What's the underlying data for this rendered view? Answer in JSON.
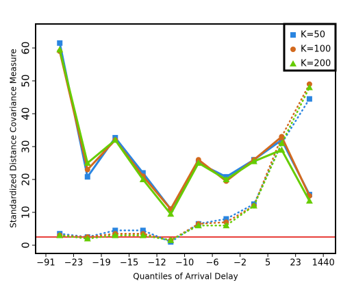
{
  "chart_data": {
    "type": "line",
    "xlabel": "Quantiles of Arrival Delay",
    "ylabel": "Standardized Distance Covariance Measure",
    "x": [
      0.5,
      1.5,
      2.5,
      3.5,
      4.5,
      5.5,
      6.5,
      7.5,
      8.5,
      9.5
    ],
    "xlim": [
      -0.37,
      10.44
    ],
    "xticks": [
      {
        "value": 0,
        "label": "−91"
      },
      {
        "value": 1,
        "label": "−23"
      },
      {
        "value": 2,
        "label": "−19"
      },
      {
        "value": 3,
        "label": "−15"
      },
      {
        "value": 4,
        "label": "−12"
      },
      {
        "value": 5,
        "label": "−10"
      },
      {
        "value": 6,
        "label": "−6"
      },
      {
        "value": 7,
        "label": "−2"
      },
      {
        "value": 8,
        "label": "5"
      },
      {
        "value": 9,
        "label": "23"
      },
      {
        "value": 10,
        "label": "1440"
      }
    ],
    "ylim": [
      -2.5,
      67.3
    ],
    "yticks": [
      0,
      10,
      20,
      30,
      40,
      50,
      60
    ],
    "reference_line": {
      "value": 2.5,
      "color": "#e8403a"
    },
    "legend": "upper right",
    "series": [
      {
        "name": "K=50",
        "color": "#2a85e0",
        "marker": "square",
        "values": [
          61.5,
          20.8,
          32.7,
          22,
          11,
          25,
          20.8,
          26,
          32,
          15.4
        ],
        "dotted_values": [
          3.5,
          2.5,
          4.5,
          4.5,
          1,
          6.5,
          8,
          12.5,
          31,
          44.5
        ]
      },
      {
        "name": "K=100",
        "color": "#d2691e",
        "marker": "circle",
        "values": [
          59,
          23,
          32,
          21,
          11,
          26,
          19.5,
          26,
          33,
          15
        ],
        "dotted_values": [
          3,
          2.5,
          3.5,
          3.5,
          1.5,
          6.5,
          7,
          12,
          33,
          49
        ]
      },
      {
        "name": "K=200",
        "color": "#66cc00",
        "marker": "triangle",
        "values": [
          59.5,
          25,
          32,
          20,
          9.5,
          25,
          20,
          25.5,
          29,
          13.5
        ],
        "dotted_values": [
          3,
          2,
          3,
          3,
          1.5,
          6,
          6,
          12,
          31,
          48
        ]
      }
    ]
  }
}
